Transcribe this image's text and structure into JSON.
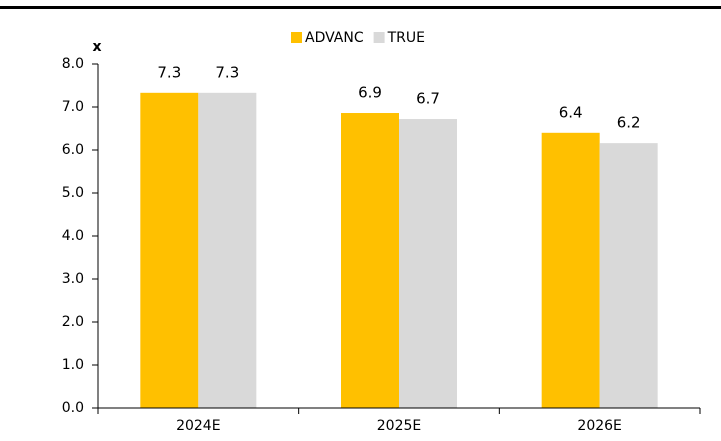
{
  "chart_data": {
    "type": "bar",
    "y_label": "x",
    "categories": [
      "2024E",
      "2025E",
      "2026E"
    ],
    "series": [
      {
        "name": "ADVANC",
        "color": "#ffc000",
        "values": [
          7.33,
          6.86,
          6.4
        ],
        "value_labels": [
          "7.3",
          "6.9",
          "6.4"
        ]
      },
      {
        "name": "TRUE",
        "color": "#d9d9d9",
        "values": [
          7.33,
          6.72,
          6.16
        ],
        "value_labels": [
          "7.3",
          "6.7",
          "6.2"
        ]
      }
    ],
    "ylim": [
      0,
      8
    ],
    "yticks": [
      {
        "value": 0,
        "label": "0.0"
      },
      {
        "value": 1,
        "label": "1.0"
      },
      {
        "value": 2,
        "label": "2.0"
      },
      {
        "value": 3,
        "label": "3.0"
      },
      {
        "value": 4,
        "label": "4.0"
      },
      {
        "value": 5,
        "label": "5.0"
      },
      {
        "value": 6,
        "label": "6.0"
      },
      {
        "value": 7,
        "label": "7.0"
      },
      {
        "value": 8,
        "label": "8.0"
      }
    ],
    "grid": false,
    "legend": "top"
  }
}
